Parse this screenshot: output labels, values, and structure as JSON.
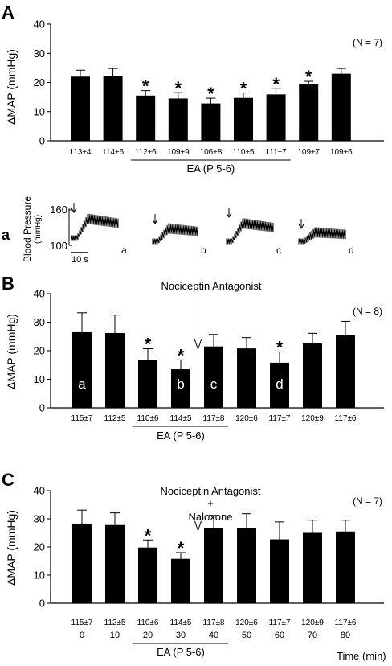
{
  "chart_data": [
    {
      "panel": "A",
      "type": "bar",
      "n_label": "(N = 7)",
      "ylabel": "ΔMAP (mmHg)",
      "ylim": [
        0,
        40
      ],
      "yticks": [
        0,
        10,
        20,
        30,
        40
      ],
      "values": [
        22,
        22.3,
        15.5,
        14.5,
        12.8,
        14.7,
        15.9,
        19.3,
        23
      ],
      "errors": [
        2.2,
        2.5,
        1.7,
        2.0,
        1.8,
        1.7,
        2.1,
        1.1,
        1.8
      ],
      "significant": [
        false,
        false,
        true,
        true,
        true,
        true,
        true,
        true,
        false
      ],
      "baseline_labels": [
        "113±4",
        "114±6",
        "112±6",
        "109±9",
        "106±8",
        "110±5",
        "111±7",
        "109±7",
        "109±6"
      ],
      "ea_label": "EA (P 5-6)",
      "ea_range": [
        2,
        6
      ]
    },
    {
      "panel": "B",
      "type": "bar",
      "n_label": "(N = 8)",
      "ylabel": "ΔMAP (mmHg)",
      "ylim": [
        0,
        40
      ],
      "yticks": [
        0,
        10,
        20,
        30,
        40
      ],
      "values": [
        26.5,
        26.2,
        16.7,
        13.5,
        21.5,
        20.8,
        15.8,
        22.8,
        25.5
      ],
      "errors": [
        6.8,
        6.3,
        4.0,
        3.3,
        4.2,
        3.8,
        3.8,
        3.3,
        4.8
      ],
      "significant": [
        false,
        false,
        true,
        true,
        false,
        false,
        true,
        false,
        false
      ],
      "bar_letters": [
        "a",
        "",
        "",
        "b",
        "c",
        "",
        "d",
        "",
        ""
      ],
      "baseline_labels": [
        "115±7",
        "112±5",
        "110±6",
        "114±5",
        "117±8",
        "120±6",
        "117±7",
        "120±9",
        "117±6"
      ],
      "ea_label": "EA (P 5-6)",
      "ea_range": [
        2,
        4
      ],
      "annotation": "Nociceptin Antagonist",
      "arrow_between": [
        3,
        4
      ]
    },
    {
      "panel": "C",
      "type": "bar",
      "n_label": "(N = 7)",
      "ylabel": "ΔMAP (mmHg)",
      "ylim": [
        0,
        40
      ],
      "yticks": [
        0,
        10,
        20,
        30,
        40
      ],
      "values": [
        28.3,
        27.8,
        19.8,
        15.8,
        26.8,
        26.8,
        22.7,
        25,
        25.5
      ],
      "errors": [
        4.8,
        4.3,
        2.7,
        2.2,
        4.4,
        5.0,
        6.2,
        4.5,
        4.0
      ],
      "significant": [
        false,
        false,
        true,
        true,
        false,
        false,
        false,
        false,
        false
      ],
      "baseline_labels": [
        "115±7",
        "112±5",
        "110±6",
        "114±5",
        "117±8",
        "120±6",
        "117±7",
        "120±9",
        "117±6"
      ],
      "x": [
        0,
        10,
        20,
        30,
        40,
        50,
        60,
        70,
        80
      ],
      "xlabel": "Time (min)",
      "ea_label": "EA (P 5-6)",
      "ea_range": [
        2,
        4
      ],
      "annotation": [
        "Nociceptin Antagonist",
        "+",
        "Naloxone"
      ],
      "arrow_between": [
        3,
        4
      ]
    }
  ],
  "trace_panel": {
    "letter": "a",
    "ylabel": [
      "Blood Pressure",
      "(mmHg)"
    ],
    "ticks": [
      "160",
      "100"
    ],
    "scale_bar": "10 s",
    "trace_labels": [
      "a",
      "b",
      "c",
      "d"
    ]
  },
  "panel_letters": [
    "A",
    "B",
    "C"
  ]
}
